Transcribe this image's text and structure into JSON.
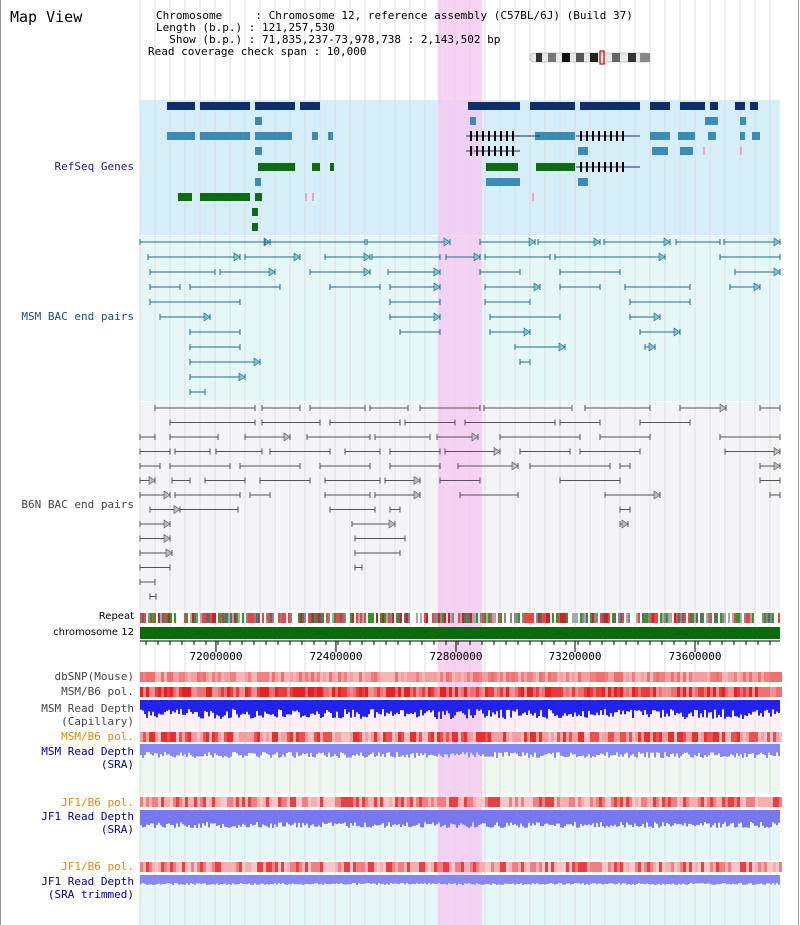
{
  "title": "Map View",
  "info": {
    "chromosome_line": "Chromosome     : Chromosome 12, reference assembly (C57BL/6J) (Build 37)",
    "length_line": "Length (b.p.) : 121,257,530",
    "show_line": "  Show (b.p.) : 71,835,237-73,978,738 : 2,143,502 bp",
    "coverage_line": "Read coverage check span : 10,000"
  },
  "tracks": {
    "refseq": "RefSeq Genes",
    "msm_bac": "MSM BAC end pairs",
    "b6n_bac": "B6N BAC end pairs",
    "repeat": "Repeat",
    "chromosome": "chromosome 12",
    "dbsnp": "dbSNP(Mouse)",
    "msm_b6_pol_1": "MSM/B6 pol.",
    "msm_depth_cap_1": "MSM Read Depth",
    "msm_depth_cap_2": "(Capillary)",
    "msm_b6_pol_2": "MSM/B6 pol.",
    "msm_depth_sra_1": "MSM Read Depth",
    "msm_depth_sra_2": "(SRA)",
    "jf1_pol_1": "JF1/B6 pol.",
    "jf1_depth_sra_1": "JF1 Read Depth",
    "jf1_depth_sra_2": "(SRA)",
    "jf1_pol_2": "JF1/B6 pol.",
    "jf1_depth_trim_1": "JF1 Read Depth",
    "jf1_depth_trim_2": "(SRA trimmed)"
  },
  "scale": {
    "ticks": [
      "72000000",
      "72400000",
      "72800000",
      "73200000",
      "73600000"
    ]
  },
  "colors": {
    "refseq_label": "#1a1a99",
    "msm_label": "#1a4f7a",
    "b6n_label": "#444444",
    "orange_label": "#e08a00",
    "blue_label": "#000099",
    "highlight": "#f6c6f0",
    "gene_dark": "#0d2f6b",
    "gene_mid": "#3a8bb6",
    "gene_green": "#0e6b12",
    "msm_pair": "#1a6e8c",
    "b6n_pair": "#555555",
    "chromosome_bar": "#0b6b0b"
  }
}
